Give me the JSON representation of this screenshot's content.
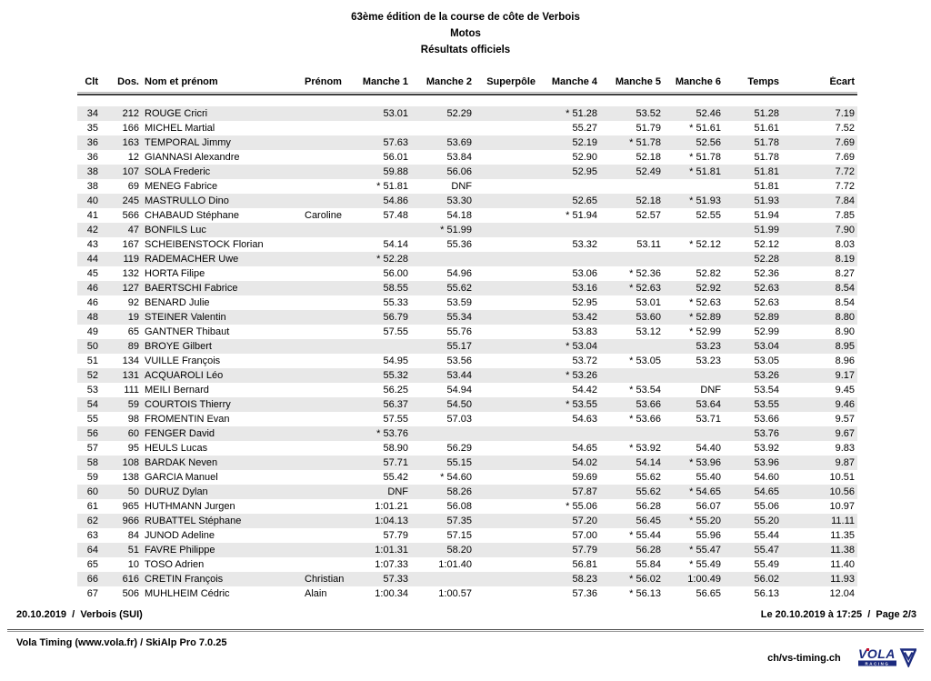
{
  "title": {
    "line1": "63ème édition de la course de côte de Verbois",
    "line2": "Motos",
    "line3": "Résultats officiels"
  },
  "table": {
    "columns": [
      "Clt",
      "Dos.",
      "Nom et prénom",
      "Prénom",
      "Manche 1",
      "Manche 2",
      "Superpôle",
      "Manche 4",
      "Manche 5",
      "Manche 6",
      "Temps",
      "Écart"
    ],
    "rows": [
      [
        "34",
        "212",
        "ROUGE Cricri",
        "",
        "53.01",
        "52.29",
        "",
        "* 51.28",
        "53.52",
        "52.46",
        "51.28",
        "7.19"
      ],
      [
        "35",
        "166",
        "MICHEL Martial",
        "",
        "",
        "",
        "",
        "55.27",
        "51.79",
        "* 51.61",
        "51.61",
        "7.52"
      ],
      [
        "36",
        "163",
        "TEMPORAL Jimmy",
        "",
        "57.63",
        "53.69",
        "",
        "52.19",
        "* 51.78",
        "52.56",
        "51.78",
        "7.69"
      ],
      [
        "36",
        "12",
        "GIANNASI Alexandre",
        "",
        "56.01",
        "53.84",
        "",
        "52.90",
        "52.18",
        "* 51.78",
        "51.78",
        "7.69"
      ],
      [
        "38",
        "107",
        "SOLA Frederic",
        "",
        "59.88",
        "56.06",
        "",
        "52.95",
        "52.49",
        "* 51.81",
        "51.81",
        "7.72"
      ],
      [
        "38",
        "69",
        "MENEG Fabrice",
        "",
        "* 51.81",
        "DNF",
        "",
        "",
        "",
        "",
        "51.81",
        "7.72"
      ],
      [
        "40",
        "245",
        "MASTRULLO Dino",
        "",
        "54.86",
        "53.30",
        "",
        "52.65",
        "52.18",
        "* 51.93",
        "51.93",
        "7.84"
      ],
      [
        "41",
        "566",
        "CHABAUD Stéphane",
        "Caroline",
        "57.48",
        "54.18",
        "",
        "* 51.94",
        "52.57",
        "52.55",
        "51.94",
        "7.85"
      ],
      [
        "42",
        "47",
        "BONFILS Luc",
        "",
        "",
        "* 51.99",
        "",
        "",
        "",
        "",
        "51.99",
        "7.90"
      ],
      [
        "43",
        "167",
        "SCHEIBENSTOCK Florian",
        "",
        "54.14",
        "55.36",
        "",
        "53.32",
        "53.11",
        "* 52.12",
        "52.12",
        "8.03"
      ],
      [
        "44",
        "119",
        "RADEMACHER Uwe",
        "",
        "* 52.28",
        "",
        "",
        "",
        "",
        "",
        "52.28",
        "8.19"
      ],
      [
        "45",
        "132",
        "HORTA Filipe",
        "",
        "56.00",
        "54.96",
        "",
        "53.06",
        "* 52.36",
        "52.82",
        "52.36",
        "8.27"
      ],
      [
        "46",
        "127",
        "BAERTSCHI Fabrice",
        "",
        "58.55",
        "55.62",
        "",
        "53.16",
        "* 52.63",
        "52.92",
        "52.63",
        "8.54"
      ],
      [
        "46",
        "92",
        "BENARD Julie",
        "",
        "55.33",
        "53.59",
        "",
        "52.95",
        "53.01",
        "* 52.63",
        "52.63",
        "8.54"
      ],
      [
        "48",
        "19",
        "STEINER Valentin",
        "",
        "56.79",
        "55.34",
        "",
        "53.42",
        "53.60",
        "* 52.89",
        "52.89",
        "8.80"
      ],
      [
        "49",
        "65",
        "GANTNER Thibaut",
        "",
        "57.55",
        "55.76",
        "",
        "53.83",
        "53.12",
        "* 52.99",
        "52.99",
        "8.90"
      ],
      [
        "50",
        "89",
        "BROYE Gilbert",
        "",
        "",
        "55.17",
        "",
        "* 53.04",
        "",
        "53.23",
        "53.04",
        "8.95"
      ],
      [
        "51",
        "134",
        "VUILLE François",
        "",
        "54.95",
        "53.56",
        "",
        "53.72",
        "* 53.05",
        "53.23",
        "53.05",
        "8.96"
      ],
      [
        "52",
        "131",
        "ACQUAROLI Léo",
        "",
        "55.32",
        "53.44",
        "",
        "* 53.26",
        "",
        "",
        "53.26",
        "9.17"
      ],
      [
        "53",
        "111",
        "MEILI Bernard",
        "",
        "56.25",
        "54.94",
        "",
        "54.42",
        "* 53.54",
        "DNF",
        "53.54",
        "9.45"
      ],
      [
        "54",
        "59",
        "COURTOIS Thierry",
        "",
        "56.37",
        "54.50",
        "",
        "* 53.55",
        "53.66",
        "53.64",
        "53.55",
        "9.46"
      ],
      [
        "55",
        "98",
        "FROMENTIN Evan",
        "",
        "57.55",
        "57.03",
        "",
        "54.63",
        "* 53.66",
        "53.71",
        "53.66",
        "9.57"
      ],
      [
        "56",
        "60",
        "FENGER David",
        "",
        "* 53.76",
        "",
        "",
        "",
        "",
        "",
        "53.76",
        "9.67"
      ],
      [
        "57",
        "95",
        "HEULS Lucas",
        "",
        "58.90",
        "56.29",
        "",
        "54.65",
        "* 53.92",
        "54.40",
        "53.92",
        "9.83"
      ],
      [
        "58",
        "108",
        "BARDAK Neven",
        "",
        "57.71",
        "55.15",
        "",
        "54.02",
        "54.14",
        "* 53.96",
        "53.96",
        "9.87"
      ],
      [
        "59",
        "138",
        "GARCIA Manuel",
        "",
        "55.42",
        "* 54.60",
        "",
        "59.69",
        "55.62",
        "55.40",
        "54.60",
        "10.51"
      ],
      [
        "60",
        "50",
        "DURUZ Dylan",
        "",
        "DNF",
        "58.26",
        "",
        "57.87",
        "55.62",
        "* 54.65",
        "54.65",
        "10.56"
      ],
      [
        "61",
        "965",
        "HUTHMANN Jurgen",
        "",
        "1:01.21",
        "56.08",
        "",
        "* 55.06",
        "56.28",
        "56.07",
        "55.06",
        "10.97"
      ],
      [
        "62",
        "966",
        "RUBATTEL Stéphane",
        "",
        "1:04.13",
        "57.35",
        "",
        "57.20",
        "56.45",
        "* 55.20",
        "55.20",
        "11.11"
      ],
      [
        "63",
        "84",
        "JUNOD Adeline",
        "",
        "57.79",
        "57.15",
        "",
        "57.00",
        "* 55.44",
        "55.96",
        "55.44",
        "11.35"
      ],
      [
        "64",
        "51",
        "FAVRE Philippe",
        "",
        "1:01.31",
        "58.20",
        "",
        "57.79",
        "56.28",
        "* 55.47",
        "55.47",
        "11.38"
      ],
      [
        "65",
        "10",
        "TOSO Adrien",
        "",
        "1:07.33",
        "1:01.40",
        "",
        "56.81",
        "55.84",
        "* 55.49",
        "55.49",
        "11.40"
      ],
      [
        "66",
        "616",
        "CRETIN François",
        "Christian",
        "57.33",
        "",
        "",
        "58.23",
        "* 56.02",
        "1:00.49",
        "56.02",
        "11.93"
      ],
      [
        "67",
        "506",
        "MUHLHEIM Cédric",
        "Alain",
        "1:00.34",
        "1:00.57",
        "",
        "57.36",
        "* 56.13",
        "56.65",
        "56.13",
        "12.04"
      ]
    ]
  },
  "footer": {
    "top_left": "20.10.2019  /  Verbois (SUI)",
    "top_right": "Le 20.10.2019 à 17:25  /  Page 2/3",
    "bottom_left": "Vola Timing (www.vola.fr) / SkiAlp Pro 7.0.25",
    "bottom_right": "ch/vs-timing.ch",
    "logo_text": "VOLA",
    "logo_sub": "RACING"
  },
  "colors": {
    "stripe": "#e8e8e8",
    "text": "#000000",
    "logo_blue": "#1b2a7e",
    "rule_dark": "#3d3d3d"
  }
}
